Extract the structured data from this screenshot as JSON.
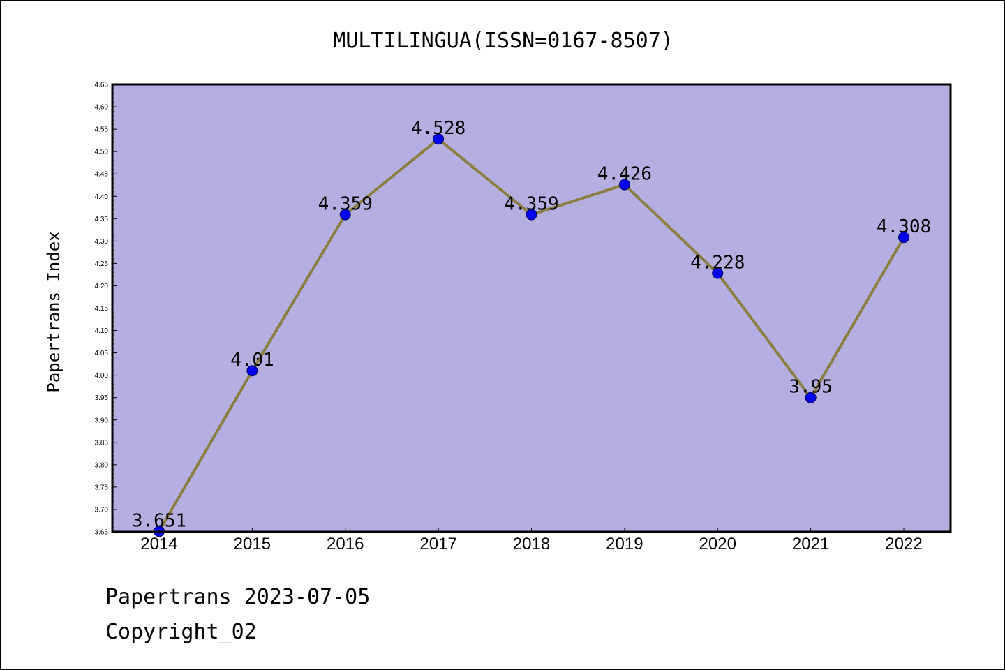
{
  "footer": {
    "line1": "Papertrans 2023-07-05",
    "line2": "Copyright_02"
  },
  "colors": {
    "plot_background": "#b5afe1",
    "line": "#8c7d42",
    "marker": "#0000ee",
    "marker_edge": "#00005a"
  },
  "chart_data": {
    "type": "line",
    "title": "MULTILINGUA(ISSN=0167-8507)",
    "xlabel": "",
    "ylabel": "Papertrans Index",
    "categories": [
      "2014",
      "2015",
      "2016",
      "2017",
      "2018",
      "2019",
      "2020",
      "2021",
      "2022"
    ],
    "series": [
      {
        "values": [
          3.651,
          4.01,
          4.359,
          4.528,
          4.359,
          4.426,
          4.228,
          3.95,
          4.308
        ],
        "labels": [
          "3.651",
          "4.01",
          "4.359",
          "4.528",
          "4.359",
          "4.426",
          "4.228",
          "3.95",
          "4.308"
        ]
      }
    ],
    "ylim": [
      3.65,
      4.65
    ],
    "yticks": [
      "3.65",
      "3.70",
      "3.75",
      "3.80",
      "3.85",
      "3.90",
      "3.95",
      "4.00",
      "4.05",
      "4.10",
      "4.15",
      "4.20",
      "4.25",
      "4.30",
      "4.35",
      "4.40",
      "4.45",
      "4.50",
      "4.55",
      "4.60",
      "4.65"
    ],
    "grid": false,
    "legend": "none"
  }
}
